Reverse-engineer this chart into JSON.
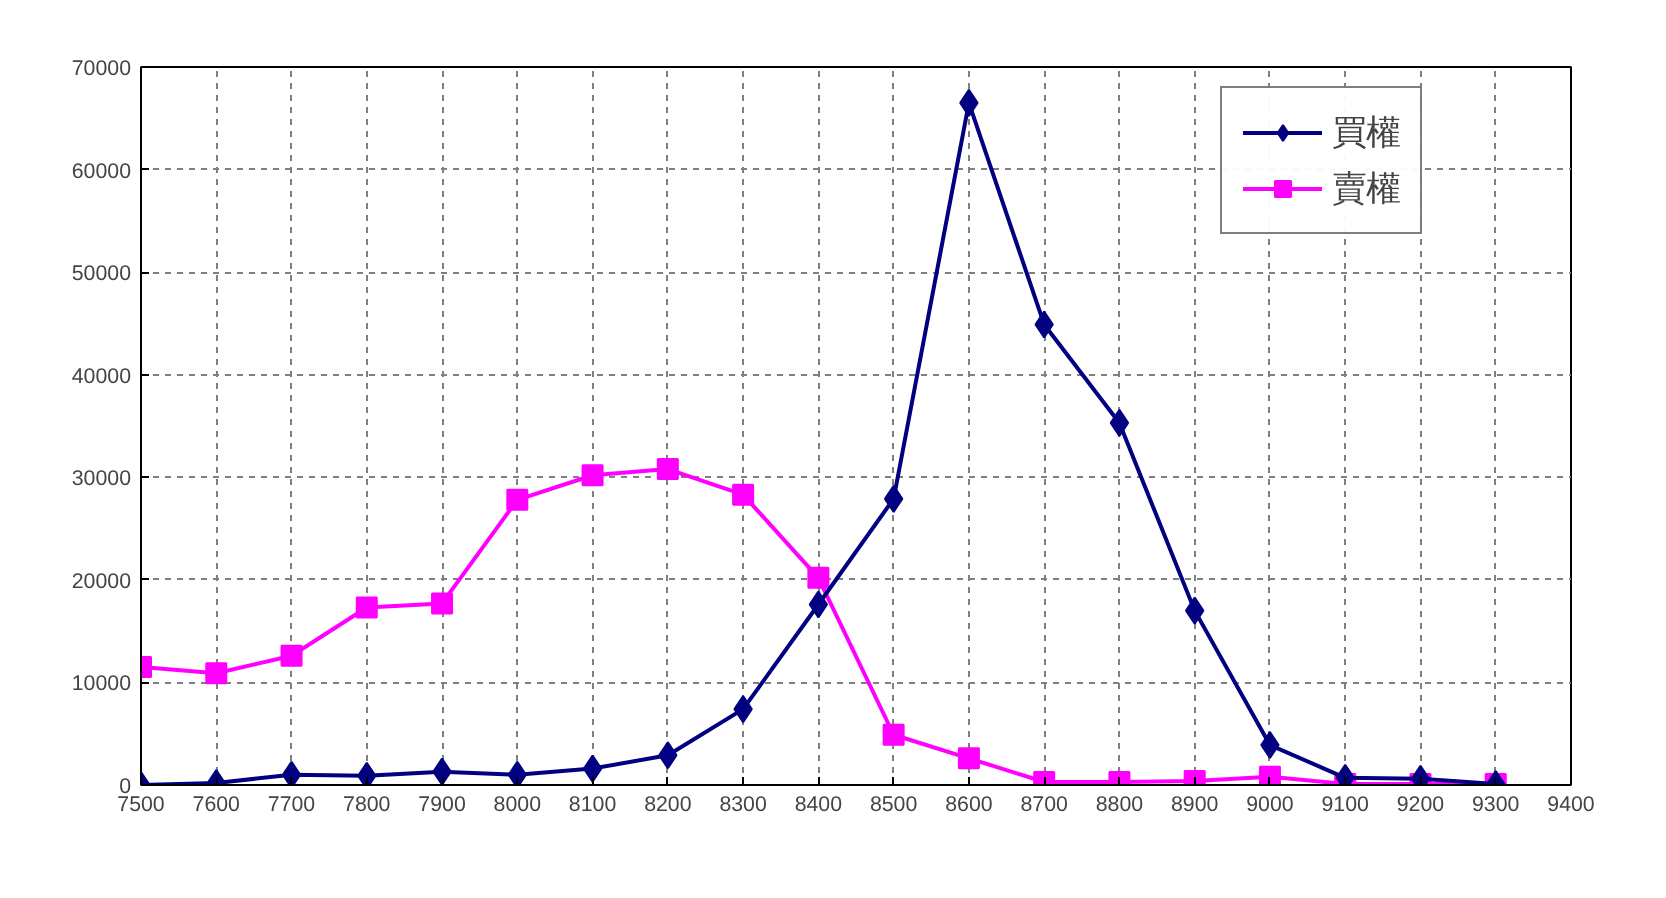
{
  "chart_data": {
    "type": "line",
    "x": [
      7500,
      7600,
      7700,
      7800,
      7900,
      8000,
      8100,
      8200,
      8300,
      8400,
      8500,
      8600,
      8700,
      8800,
      8900,
      9000,
      9100,
      9200,
      9300
    ],
    "series": [
      {
        "name": "買權",
        "color": "#000080",
        "marker": "diamond",
        "values": [
          0,
          200,
          1000,
          900,
          1300,
          1000,
          1600,
          2900,
          7400,
          17600,
          27900,
          66500,
          44900,
          35300,
          17000,
          3900,
          700,
          600,
          100
        ]
      },
      {
        "name": "賣權",
        "color": "#ff00ff",
        "marker": "square",
        "values": [
          11500,
          10900,
          12600,
          17300,
          17700,
          27800,
          30200,
          30800,
          28300,
          20200,
          4900,
          2600,
          300,
          300,
          400,
          800,
          100,
          100,
          100
        ]
      }
    ],
    "xlim": [
      7500,
      9400
    ],
    "xticks": [
      7500,
      7600,
      7700,
      7800,
      7900,
      8000,
      8100,
      8200,
      8300,
      8400,
      8500,
      8600,
      8700,
      8800,
      8900,
      9000,
      9100,
      9200,
      9300,
      9400
    ],
    "ylim": [
      0,
      70000
    ],
    "yticks": [
      0,
      10000,
      20000,
      30000,
      40000,
      50000,
      60000,
      70000
    ],
    "grid": true,
    "legend": "top right",
    "line_style": "solid"
  }
}
